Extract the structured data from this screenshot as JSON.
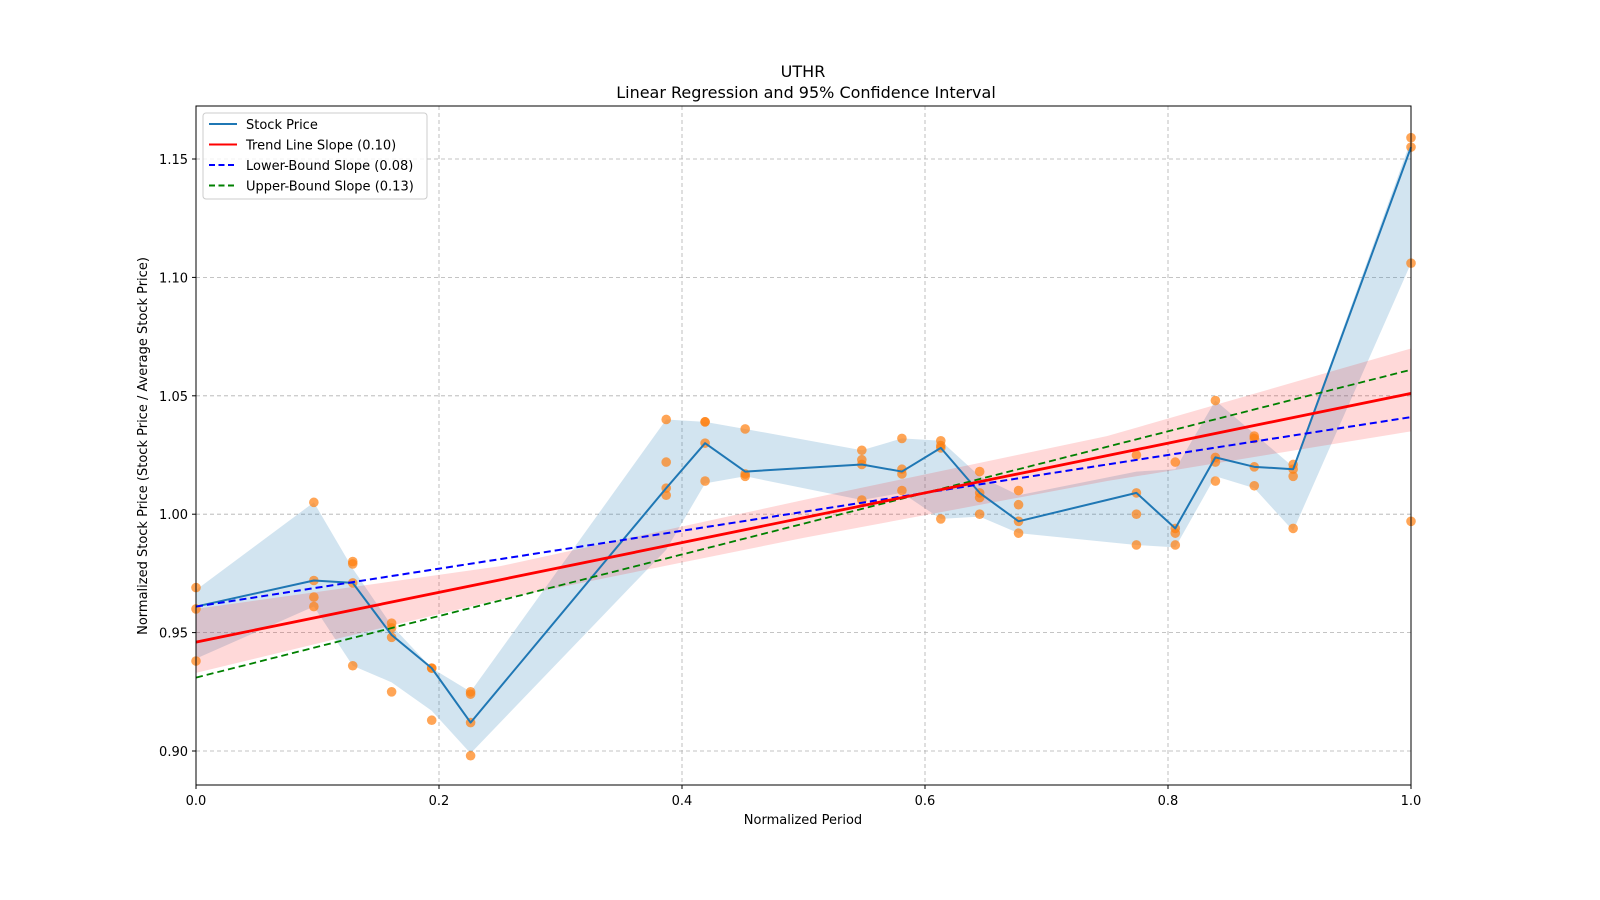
{
  "chart_data": {
    "type": "line",
    "title": "UTHR",
    "subtitle": "Linear Regression and 95% Confidence Interval",
    "xlabel": "Normalized Period",
    "ylabel": "Normalized Stock Price (Stock Price / Average Stock Price)",
    "xlim": [
      0.0,
      1.0
    ],
    "ylim": [
      0.886,
      1.172
    ],
    "xticks": [
      0.0,
      0.2,
      0.4,
      0.6,
      0.8,
      1.0
    ],
    "xtick_labels": [
      "0.0",
      "0.2",
      "0.4",
      "0.6",
      "0.8",
      "1.0"
    ],
    "yticks": [
      0.9,
      0.95,
      1.0,
      1.05,
      1.1,
      1.15
    ],
    "ytick_labels": [
      "0.90",
      "0.95",
      "1.00",
      "1.05",
      "1.10",
      "1.15"
    ],
    "grid": true,
    "legend_position": "top-left",
    "legend": [
      {
        "label": "Stock Price",
        "color": "#1f77b4",
        "style": "solid"
      },
      {
        "label": "Trend Line Slope (0.10)",
        "color": "#ff0000",
        "style": "solid"
      },
      {
        "label": "Lower-Bound Slope (0.08)",
        "color": "#0000ff",
        "style": "dashed"
      },
      {
        "label": "Upper-Bound Slope (0.13)",
        "color": "#008000",
        "style": "dashed"
      }
    ],
    "series": [
      {
        "name": "Stock Price",
        "color": "#1f77b4",
        "x": [
          0.0,
          0.097,
          0.129,
          0.161,
          0.194,
          0.226,
          0.387,
          0.419,
          0.452,
          0.548,
          0.581,
          0.613,
          0.645,
          0.677,
          0.774,
          0.806,
          0.839,
          0.871,
          0.903,
          1.0
        ],
        "y": [
          0.961,
          0.972,
          0.971,
          0.949,
          0.935,
          0.912,
          1.011,
          1.03,
          1.018,
          1.021,
          1.018,
          1.028,
          1.009,
          0.997,
          1.009,
          0.994,
          1.024,
          1.02,
          1.019,
          1.155
        ],
        "ci_lower": [
          0.939,
          0.961,
          0.936,
          0.929,
          0.917,
          0.899,
          0.985,
          1.013,
          1.016,
          1.006,
          1.009,
          0.998,
          0.999,
          0.992,
          0.987,
          0.986,
          1.016,
          1.011,
          0.993,
          1.106
        ],
        "ci_upper": [
          0.968,
          1.005,
          0.977,
          0.953,
          0.935,
          0.925,
          1.04,
          1.039,
          1.036,
          1.027,
          1.032,
          1.031,
          1.016,
          1.008,
          1.018,
          1.019,
          1.048,
          1.034,
          1.02,
          1.158
        ]
      },
      {
        "name": "Trend Line Slope (0.10)",
        "color": "#ff0000",
        "x": [
          0.0,
          1.0
        ],
        "y": [
          0.946,
          1.051
        ],
        "ci_x": [
          0.0,
          0.25,
          0.5,
          0.75,
          1.0
        ],
        "ci_lower": [
          0.933,
          0.964,
          0.99,
          1.014,
          1.035
        ],
        "ci_upper": [
          0.96,
          0.978,
          1.006,
          1.033,
          1.07
        ]
      },
      {
        "name": "Lower-Bound Slope (0.08)",
        "color": "#0000ff",
        "x": [
          0.0,
          1.0
        ],
        "y": [
          0.961,
          1.041
        ]
      },
      {
        "name": "Upper-Bound Slope (0.13)",
        "color": "#008000",
        "x": [
          0.0,
          1.0
        ],
        "y": [
          0.931,
          1.061
        ]
      }
    ],
    "scatter": {
      "name": "Observed Prices",
      "color": "#ff7f0e",
      "points": [
        [
          0.0,
          0.969
        ],
        [
          0.0,
          0.96
        ],
        [
          0.0,
          0.938
        ],
        [
          0.097,
          1.005
        ],
        [
          0.097,
          0.972
        ],
        [
          0.097,
          0.965
        ],
        [
          0.097,
          0.961
        ],
        [
          0.129,
          0.98
        ],
        [
          0.129,
          0.979
        ],
        [
          0.129,
          0.971
        ],
        [
          0.129,
          0.936
        ],
        [
          0.161,
          0.954
        ],
        [
          0.161,
          0.952
        ],
        [
          0.161,
          0.948
        ],
        [
          0.161,
          0.925
        ],
        [
          0.194,
          0.935
        ],
        [
          0.194,
          0.935
        ],
        [
          0.194,
          0.913
        ],
        [
          0.226,
          0.925
        ],
        [
          0.226,
          0.924
        ],
        [
          0.226,
          0.912
        ],
        [
          0.226,
          0.898
        ],
        [
          0.387,
          1.04
        ],
        [
          0.387,
          1.022
        ],
        [
          0.387,
          1.011
        ],
        [
          0.387,
          1.008
        ],
        [
          0.419,
          1.039
        ],
        [
          0.419,
          1.039
        ],
        [
          0.419,
          1.03
        ],
        [
          0.419,
          1.014
        ],
        [
          0.452,
          1.036
        ],
        [
          0.452,
          1.017
        ],
        [
          0.452,
          1.016
        ],
        [
          0.548,
          1.027
        ],
        [
          0.548,
          1.023
        ],
        [
          0.548,
          1.021
        ],
        [
          0.548,
          1.006
        ],
        [
          0.581,
          1.032
        ],
        [
          0.581,
          1.019
        ],
        [
          0.581,
          1.017
        ],
        [
          0.581,
          1.01
        ],
        [
          0.613,
          1.031
        ],
        [
          0.613,
          1.029
        ],
        [
          0.613,
          1.028
        ],
        [
          0.613,
          0.998
        ],
        [
          0.645,
          1.018
        ],
        [
          0.645,
          1.009
        ],
        [
          0.645,
          1.007
        ],
        [
          0.645,
          1.0
        ],
        [
          0.677,
          1.01
        ],
        [
          0.677,
          1.004
        ],
        [
          0.677,
          0.997
        ],
        [
          0.677,
          0.992
        ],
        [
          0.774,
          1.025
        ],
        [
          0.774,
          1.009
        ],
        [
          0.774,
          1.0
        ],
        [
          0.774,
          0.987
        ],
        [
          0.806,
          1.022
        ],
        [
          0.806,
          0.994
        ],
        [
          0.806,
          0.992
        ],
        [
          0.806,
          0.987
        ],
        [
          0.839,
          1.048
        ],
        [
          0.839,
          1.024
        ],
        [
          0.839,
          1.022
        ],
        [
          0.839,
          1.014
        ],
        [
          0.871,
          1.033
        ],
        [
          0.871,
          1.032
        ],
        [
          0.871,
          1.02
        ],
        [
          0.871,
          1.012
        ],
        [
          0.903,
          1.021
        ],
        [
          0.903,
          1.019
        ],
        [
          0.903,
          1.016
        ],
        [
          0.903,
          0.994
        ],
        [
          1.0,
          1.159
        ],
        [
          1.0,
          1.155
        ],
        [
          1.0,
          1.106
        ],
        [
          1.0,
          0.997
        ]
      ]
    }
  }
}
